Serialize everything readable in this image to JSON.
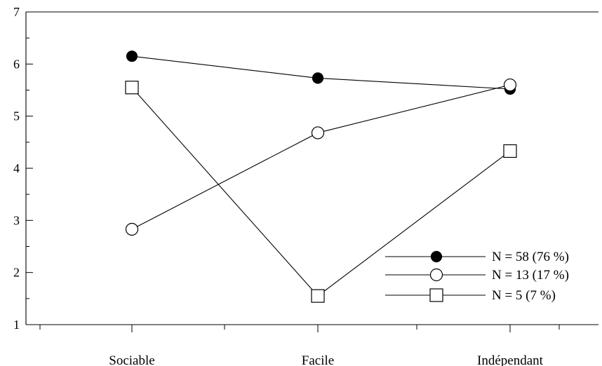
{
  "chart_data": {
    "type": "line",
    "categories": [
      "Sociable",
      "Facile",
      "Indépendant"
    ],
    "ylim": [
      1,
      7
    ],
    "yticks": [
      "1",
      "2",
      "3",
      "4",
      "5",
      "6",
      "7"
    ],
    "grid": false,
    "legend_position": "bottom-right",
    "series": [
      {
        "name": "N = 58 (76 %)",
        "marker": "filled-circle",
        "values": [
          6.15,
          5.73,
          5.52
        ]
      },
      {
        "name": "N = 13 (17 %)",
        "marker": "open-circle",
        "values": [
          2.83,
          4.68,
          5.6
        ]
      },
      {
        "name": "N = 5 (7 %)",
        "marker": "open-square",
        "values": [
          5.55,
          1.55,
          4.33
        ]
      }
    ]
  }
}
